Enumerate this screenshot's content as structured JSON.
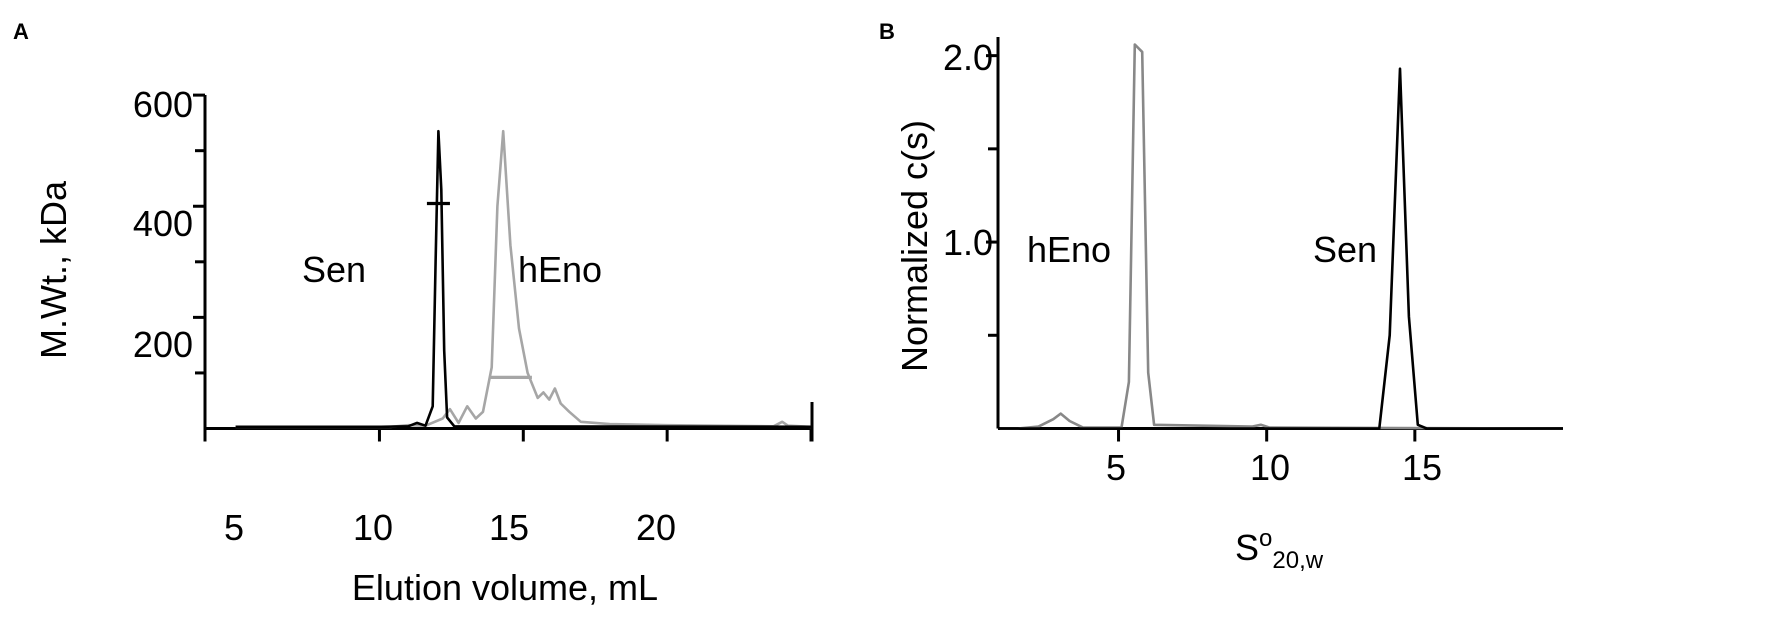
{
  "chart_data": [
    {
      "panel": "A",
      "type": "line",
      "xlabel": "Elution volume, mL",
      "ylabel": "M.Wt., kDa",
      "xlim": [
        0,
        20
      ],
      "ylim": [
        0,
        620
      ],
      "xticks": [
        5,
        10,
        15,
        20
      ],
      "yticks": [
        600,
        400,
        200
      ],
      "y_minor_ticks": [
        100,
        300,
        500
      ],
      "annotations": [
        {
          "text": "Sen",
          "x": 2.6,
          "y": 310
        },
        {
          "text": "hEno",
          "x": 10.2,
          "y": 310
        }
      ],
      "series": [
        {
          "color": "#000000",
          "points": [
            [
              0,
              3
            ],
            [
              5,
              3
            ],
            [
              6,
              4
            ],
            [
              6.3,
              10
            ],
            [
              6.6,
              5
            ],
            [
              6.85,
              40
            ],
            [
              6.95,
              300
            ],
            [
              7.05,
              535
            ],
            [
              7.15,
              430
            ],
            [
              7.25,
              140
            ],
            [
              7.35,
              20
            ],
            [
              7.6,
              4
            ],
            [
              20,
              3
            ]
          ]
        },
        {
          "color": "#a6a6a6",
          "points": [
            [
              0,
              3
            ],
            [
              5.4,
              3
            ],
            [
              6,
              6
            ],
            [
              6.6,
              5
            ],
            [
              7.2,
              18
            ],
            [
              7.45,
              35
            ],
            [
              7.75,
              10
            ],
            [
              8.05,
              40
            ],
            [
              8.35,
              18
            ],
            [
              8.6,
              30
            ],
            [
              8.9,
              110
            ],
            [
              9.1,
              400
            ],
            [
              9.3,
              535
            ],
            [
              9.55,
              330
            ],
            [
              9.85,
              180
            ],
            [
              10.15,
              100
            ],
            [
              10.5,
              55
            ],
            [
              10.7,
              65
            ],
            [
              10.9,
              52
            ],
            [
              11.1,
              72
            ],
            [
              11.3,
              45
            ],
            [
              11.6,
              30
            ],
            [
              12,
              12
            ],
            [
              13,
              8
            ],
            [
              15,
              6
            ],
            [
              18.7,
              4
            ],
            [
              19,
              12
            ],
            [
              19.2,
              5
            ],
            [
              20,
              3
            ]
          ]
        }
      ],
      "mw_segments": [
        {
          "color": "#000000",
          "x": [
            6.65,
            7.45
          ],
          "y": 405
        },
        {
          "color": "#a6a6a6",
          "x": [
            8.85,
            10.3
          ],
          "y": 92
        }
      ]
    },
    {
      "panel": "B",
      "type": "line",
      "xlabel": "So20,w",
      "ylabel": "Normalized c(s)",
      "xlim": [
        1,
        20
      ],
      "ylim": [
        0,
        2.1
      ],
      "xticks": [
        5,
        10,
        15
      ],
      "yticks": [
        2.0,
        1.0
      ],
      "y_minor_ticks": [
        0.5,
        1.5
      ],
      "annotations": [
        {
          "text": "hEno",
          "x": 2.3,
          "y": 0.93
        },
        {
          "text": "Sen",
          "x": 12.3,
          "y": 0.93
        }
      ],
      "series": [
        {
          "color": "#888888",
          "points": [
            [
              1,
              0
            ],
            [
              1.6,
              0
            ],
            [
              2.3,
              0.01
            ],
            [
              2.8,
              0.05
            ],
            [
              3.05,
              0.08
            ],
            [
              3.35,
              0.04
            ],
            [
              3.8,
              0.005
            ],
            [
              5.1,
              0.005
            ],
            [
              5.35,
              0.25
            ],
            [
              5.55,
              2.06
            ],
            [
              5.8,
              2.02
            ],
            [
              6.0,
              0.3
            ],
            [
              6.2,
              0.02
            ],
            [
              9.5,
              0.01
            ],
            [
              9.8,
              0.02
            ],
            [
              10.1,
              0.005
            ],
            [
              20,
              0
            ]
          ]
        },
        {
          "color": "#000000",
          "points": [
            [
              1,
              0
            ],
            [
              13.8,
              0
            ],
            [
              14.15,
              0.5
            ],
            [
              14.5,
              1.93
            ],
            [
              14.8,
              0.6
            ],
            [
              15.1,
              0.02
            ],
            [
              15.4,
              0
            ],
            [
              20,
              0
            ]
          ]
        }
      ]
    }
  ],
  "panels": {
    "a": {
      "label": "A",
      "xlabel": "Elution volume, mL",
      "ylabel": "M.Wt., kDa",
      "xtick_labels": [
        "5",
        "10",
        "15",
        "20"
      ],
      "ytick_labels": [
        "600",
        "400",
        "200"
      ],
      "annotations": [
        "Sen",
        "hEno"
      ]
    },
    "b": {
      "label": "B",
      "xlabel_main": "S",
      "xlabel_sup": "o",
      "xlabel_sub": "20,w",
      "ylabel": "Normalized c(s)",
      "xtick_labels": [
        "5",
        "10",
        "15"
      ],
      "ytick_labels": [
        "2.0",
        "1.0"
      ],
      "annotations": [
        "hEno",
        "Sen"
      ]
    }
  }
}
